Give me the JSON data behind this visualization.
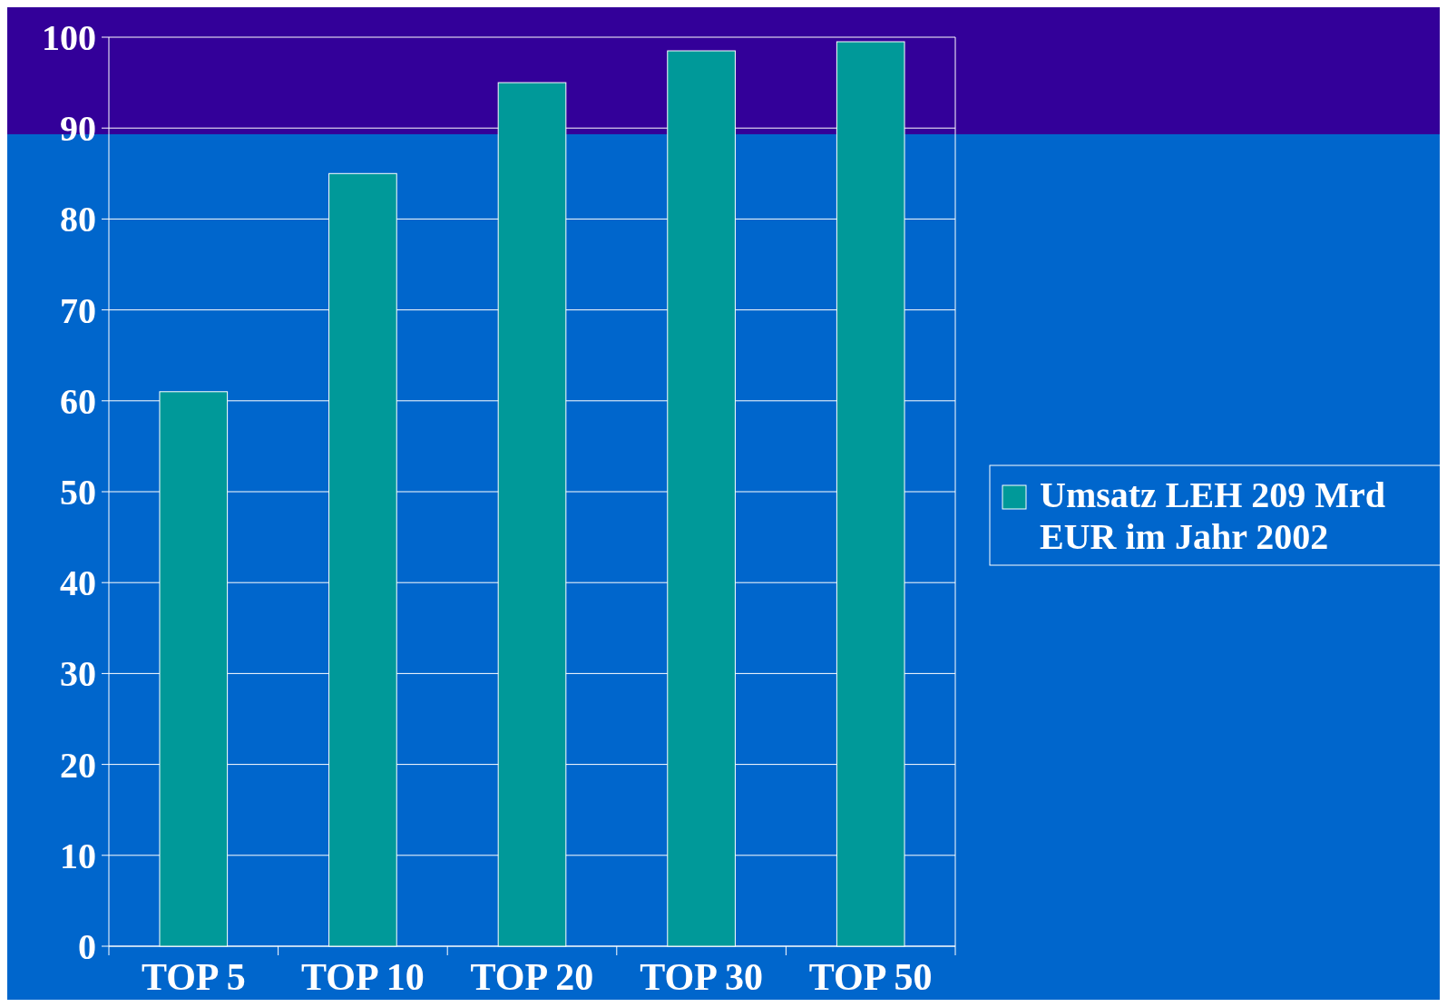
{
  "chart_data": {
    "type": "bar",
    "categories": [
      "TOP 5",
      "TOP 10",
      "TOP 20",
      "TOP 30",
      "TOP 50"
    ],
    "series": [
      {
        "name": "Umsatz LEH 209 Mrd EUR im Jahr 2002",
        "color": "#009999",
        "values": [
          61,
          85,
          95,
          98.5,
          99.5
        ]
      }
    ],
    "ylim": [
      0,
      100
    ],
    "yticks": [
      0,
      10,
      20,
      30,
      40,
      50,
      60,
      70,
      80,
      90,
      100
    ],
    "grid": "y",
    "legend": "right"
  }
}
